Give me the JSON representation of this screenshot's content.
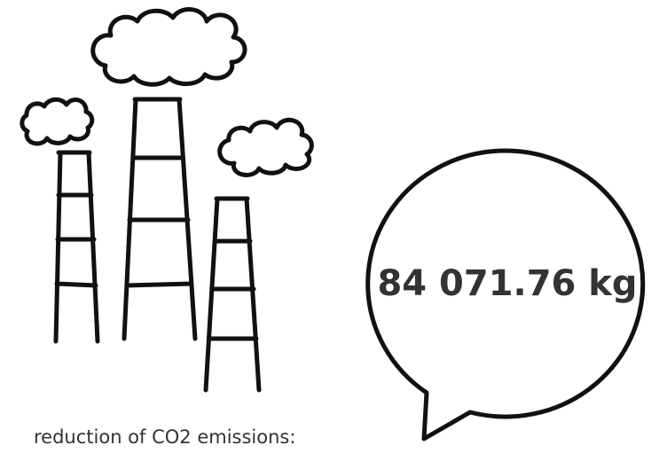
{
  "bubble": {
    "value_text": "84 071.76 kg"
  },
  "caption": "reduction of CO2 emissions:"
}
